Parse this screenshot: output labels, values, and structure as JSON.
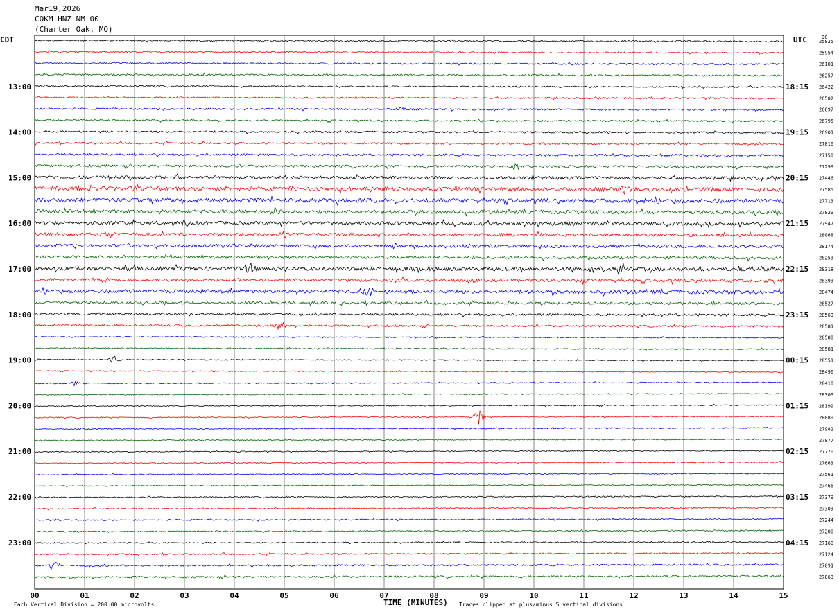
{
  "header": {
    "date": "Mar19,2026",
    "station": "COKM HNZ NM 00",
    "location": "(Charter Oak, MO)"
  },
  "labels": {
    "left_tz": "CDT",
    "right_tz": "UTC",
    "dc": "DC"
  },
  "footer": {
    "scale": "Each Vertical Division =  200.00 microvolts",
    "xlabel": "TIME (MINUTES)",
    "clip": "Traces clipped at plus/minus 5 vertical divisions"
  },
  "colors": {
    "trace_cycle": [
      "#000000",
      "#ff0000",
      "#0000ff",
      "#006400"
    ],
    "grid": "#888888"
  },
  "chart_data": {
    "type": "line",
    "title": "Mar19,2026 COKM HNZ NM 00 (Charter Oak, MO)",
    "xlabel": "TIME (MINUTES)",
    "xlim": [
      0,
      15
    ],
    "x_ticks": [
      "00",
      "01",
      "02",
      "03",
      "04",
      "05",
      "06",
      "07",
      "08",
      "09",
      "10",
      "11",
      "12",
      "13",
      "14",
      "15"
    ],
    "y_left_ticks": [
      "13:00",
      "14:00",
      "15:00",
      "16:00",
      "17:00",
      "18:00",
      "19:00",
      "20:00",
      "21:00",
      "22:00",
      "23:00"
    ],
    "y_right_ticks": [
      "18:15",
      "19:15",
      "20:15",
      "21:15",
      "22:15",
      "23:15",
      "00:15",
      "01:15",
      "02:15",
      "03:15",
      "04:15"
    ],
    "trace_interval_minutes": 15,
    "trace_count": 48,
    "dc_offsets": [
      "25825",
      "25954",
      "26101",
      "26257",
      "26422",
      "26502",
      "26697",
      "26795",
      "26901",
      "27016",
      "27150",
      "27299",
      "27446",
      "27585",
      "27713",
      "27829",
      "27947",
      "28068",
      "28174",
      "28253",
      "28318",
      "28393",
      "28474",
      "28527",
      "28563",
      "28581",
      "28588",
      "28581",
      "28551",
      "28496",
      "28410",
      "28309",
      "28199",
      "28089",
      "27982",
      "27877",
      "27770",
      "27663",
      "27561",
      "27466",
      "27379",
      "27303",
      "27244",
      "27200",
      "27160",
      "27124",
      "27091",
      "27063"
    ],
    "trace_noise_level": [
      1.0,
      1.0,
      1.1,
      1.2,
      1.0,
      1.1,
      1.2,
      1.2,
      1.3,
      1.3,
      1.5,
      1.7,
      2.2,
      2.8,
      3.0,
      2.6,
      2.4,
      2.2,
      2.2,
      2.0,
      2.6,
      2.2,
      2.6,
      1.8,
      1.6,
      1.4,
      0.8,
      0.8,
      0.7,
      0.7,
      0.7,
      0.7,
      0.7,
      0.7,
      0.7,
      0.7,
      0.7,
      0.7,
      0.7,
      0.7,
      0.8,
      0.8,
      0.9,
      0.9,
      0.9,
      1.0,
      1.2,
      1.3
    ],
    "events": [
      {
        "trace": 6,
        "minute": 7.3,
        "amplitude": 5
      },
      {
        "trace": 11,
        "minute": 9.6,
        "amplitude": 5
      },
      {
        "trace": 13,
        "minute": 11.8,
        "amplitude": 7
      },
      {
        "trace": 15,
        "minute": 4.8,
        "amplitude": 8
      },
      {
        "trace": 16,
        "minute": 3.0,
        "amplitude": 5
      },
      {
        "trace": 17,
        "minute": 1.5,
        "amplitude": 6
      },
      {
        "trace": 17,
        "minute": 5.0,
        "amplitude": 9
      },
      {
        "trace": 20,
        "minute": 4.3,
        "amplitude": 8
      },
      {
        "trace": 20,
        "minute": 11.8,
        "amplitude": 6
      },
      {
        "trace": 21,
        "minute": 11.0,
        "amplitude": 5
      },
      {
        "trace": 22,
        "minute": 6.7,
        "amplitude": 10
      },
      {
        "trace": 25,
        "minute": 4.9,
        "amplitude": 4
      },
      {
        "trace": 28,
        "minute": 1.6,
        "amplitude": 6
      },
      {
        "trace": 30,
        "minute": 0.8,
        "amplitude": 4
      },
      {
        "trace": 33,
        "minute": 8.9,
        "amplitude": 12
      },
      {
        "trace": 46,
        "minute": 0.4,
        "amplitude": 7
      }
    ],
    "grid": true
  }
}
